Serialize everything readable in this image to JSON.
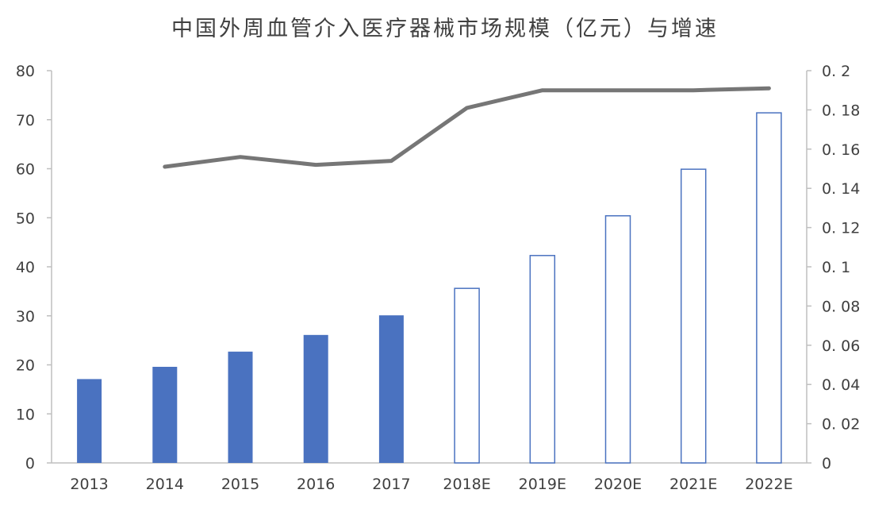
{
  "chart_data": {
    "type": "bar",
    "title": "中国外周血管介入医疗器械市场规模（亿元）与增速",
    "categories": [
      "2013",
      "2014",
      "2015",
      "2016",
      "2017",
      "2018E",
      "2019E",
      "2020E",
      "2021E",
      "2022E"
    ],
    "series": [
      {
        "type": "bar",
        "axis": "left",
        "values": [
          17.1,
          19.6,
          22.7,
          26.1,
          30.1,
          35.6,
          42.3,
          50.4,
          59.9,
          71.4
        ],
        "actual_color": "#4a72c0",
        "estimate_style": "outline",
        "estimate_from_index": 5
      },
      {
        "type": "line",
        "axis": "right",
        "values": [
          null,
          0.151,
          0.156,
          0.152,
          0.154,
          0.181,
          0.19,
          0.19,
          0.19,
          0.191
        ],
        "color": "#767676"
      }
    ],
    "y_left": {
      "min": 0,
      "max": 80,
      "ticks": [
        "0",
        "10",
        "20",
        "30",
        "40",
        "50",
        "60",
        "70",
        "80"
      ]
    },
    "y_right": {
      "min": 0,
      "max": 0.2,
      "ticks": [
        "0",
        "0. 02",
        "0. 04",
        "0. 06",
        "0. 08",
        "0. 1",
        "0. 12",
        "0. 14",
        "0. 16",
        "0. 18",
        "0. 2"
      ]
    },
    "grid": false,
    "legend": "none"
  }
}
